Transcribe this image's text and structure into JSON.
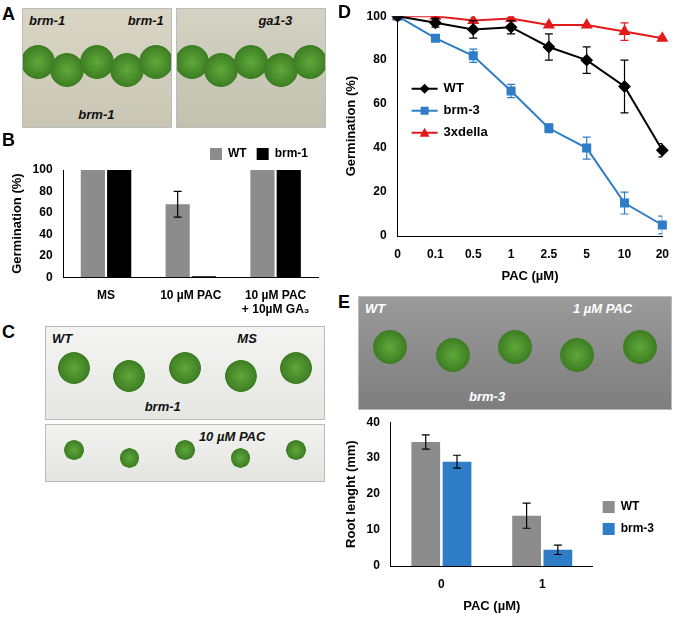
{
  "photos": [
    {
      "panel": "A",
      "labels": [
        "brm-1",
        "brm-1",
        "brm-1"
      ]
    },
    {
      "panel": "A",
      "labels": [
        "ga1-3"
      ]
    },
    {
      "panel": "C",
      "labels": [
        "WT",
        "brm-1",
        "MS"
      ]
    },
    {
      "panel": "C",
      "labels": [
        "10 µM PAC"
      ]
    },
    {
      "panel": "E",
      "labels": [
        "WT",
        "brm-3",
        "1 µM PAC"
      ]
    }
  ],
  "chart_data": [
    {
      "panel": "B",
      "type": "bar",
      "y_label": "Germination (%)",
      "categories": [
        "MS",
        "10 µM PAC",
        [
          "10 µM PAC",
          "+ 10µM GA₃"
        ]
      ],
      "series": [
        {
          "name": "WT",
          "color": "#8c8c8c",
          "values": [
            100,
            68,
            100
          ],
          "errors": [
            0,
            12,
            0
          ]
        },
        {
          "name": "brm-1",
          "color": "#000000",
          "values": [
            100,
            1,
            100
          ],
          "errors": [
            0,
            0,
            0
          ]
        }
      ],
      "ylim": [
        0,
        100
      ],
      "yticks": [
        0,
        20,
        40,
        60,
        80,
        100
      ],
      "grid": false,
      "legend": "top"
    },
    {
      "panel": "D",
      "type": "line",
      "x_label": "PAC (µM)",
      "y_label": "Germination (%)",
      "categories": [
        "0",
        "0.1",
        "0.5",
        "1",
        "2.5",
        "5",
        "10",
        "20"
      ],
      "series": [
        {
          "name": "WT",
          "color": "#000000",
          "marker": "diamond",
          "values": [
            100,
            97,
            94,
            95,
            86,
            80,
            68,
            39
          ],
          "errors": [
            0,
            2,
            4,
            3,
            6,
            6,
            12,
            3
          ]
        },
        {
          "name": "brm-3",
          "color": "#2e7dc6",
          "marker": "square",
          "values": [
            100,
            90,
            82,
            66,
            49,
            40,
            15,
            5
          ],
          "errors": [
            0,
            1,
            3,
            3,
            2,
            5,
            5,
            4
          ]
        },
        {
          "name": "3xdella",
          "color": "#e31a1c",
          "marker": "triangle",
          "values": [
            100,
            100,
            98,
            99,
            96,
            96,
            93,
            90
          ],
          "errors": [
            0,
            0,
            0,
            0,
            0,
            0,
            4,
            1
          ]
        }
      ],
      "ylim": [
        0,
        100
      ],
      "yticks": [
        0,
        20,
        40,
        60,
        80,
        100
      ],
      "grid": false,
      "legend": "left"
    },
    {
      "panel": "E",
      "type": "bar",
      "x_label": "PAC (µM)",
      "y_label": "Root lenght (mm)",
      "categories": [
        "0",
        "1"
      ],
      "series": [
        {
          "name": "WT",
          "color": "#8c8c8c",
          "values": [
            34.5,
            14
          ],
          "errors": [
            2,
            3.5
          ]
        },
        {
          "name": "brm-3",
          "color": "#2e7dc6",
          "values": [
            29,
            4.5
          ],
          "errors": [
            1.8,
            1.3
          ]
        }
      ],
      "ylim": [
        0,
        40
      ],
      "yticks": [
        0,
        10,
        20,
        30,
        40
      ],
      "grid": false,
      "legend": "right"
    }
  ]
}
